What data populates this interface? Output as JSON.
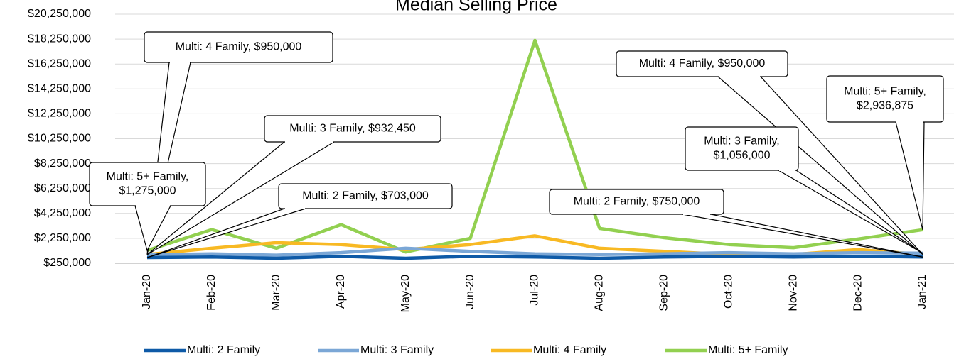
{
  "chart_data": {
    "type": "line",
    "title": "Median Selling Price",
    "categories": [
      "Jan-20",
      "Feb-20",
      "Mar-20",
      "Apr-20",
      "May-20",
      "Jun-20",
      "Jul-20",
      "Aug-20",
      "Sep-20",
      "Oct-20",
      "Nov-20",
      "Dec-20",
      "Jan-21"
    ],
    "series": [
      {
        "name": "Multi: 2 Family",
        "color": "#0e5aa7",
        "values": [
          703000,
          750000,
          650000,
          800000,
          650000,
          800000,
          750000,
          650000,
          750000,
          800000,
          750000,
          800000,
          750000
        ]
      },
      {
        "name": "Multi: 3 Family",
        "color": "#7ba7d6",
        "values": [
          932450,
          1000000,
          900000,
          1100000,
          1450000,
          1200000,
          1000000,
          950000,
          1000000,
          1100000,
          1000000,
          1100000,
          1056000
        ]
      },
      {
        "name": "Multi: 4 Family",
        "color": "#f8b923",
        "values": [
          950000,
          1450000,
          1900000,
          1750000,
          1350000,
          1750000,
          2450000,
          1450000,
          1200000,
          950000,
          950000,
          1350000,
          950000
        ]
      },
      {
        "name": "Multi: 5+ Family",
        "color": "#92d050",
        "values": [
          1275000,
          2950000,
          1450000,
          3350000,
          1150000,
          2250000,
          18150000,
          3050000,
          2300000,
          1750000,
          1500000,
          2200000,
          2936875
        ]
      }
    ],
    "ylim": [
      250000,
      20250000
    ],
    "yticks": [
      {
        "value": 250000,
        "label": "$250,000"
      },
      {
        "value": 2250000,
        "label": "$2,250,000"
      },
      {
        "value": 4250000,
        "label": "$4,250,000"
      },
      {
        "value": 6250000,
        "label": "$6,250,000"
      },
      {
        "value": 8250000,
        "label": "$8,250,000"
      },
      {
        "value": 10250000,
        "label": "$10,250,000"
      },
      {
        "value": 12250000,
        "label": "$12,250,000"
      },
      {
        "value": 14250000,
        "label": "$14,250,000"
      },
      {
        "value": 16250000,
        "label": "$16,250,000"
      },
      {
        "value": 18250000,
        "label": "$18,250,000"
      },
      {
        "value": 20250000,
        "label": "$20,250,000"
      }
    ],
    "grid": true,
    "legend": "bottom",
    "annotations": [
      {
        "lines": [
          "Multi: 4 Family, $950,000"
        ]
      },
      {
        "lines": [
          "Multi: 3 Family, $932,450"
        ]
      },
      {
        "lines": [
          "Multi: 5+ Family,",
          "$1,275,000"
        ]
      },
      {
        "lines": [
          "Multi: 2 Family, $703,000"
        ]
      },
      {
        "lines": [
          "Multi: 4 Family, $950,000"
        ]
      },
      {
        "lines": [
          "Multi: 5+ Family,",
          "$2,936,875"
        ]
      },
      {
        "lines": [
          "Multi: 3 Family,",
          "$1,056,000"
        ]
      },
      {
        "lines": [
          "Multi: 2 Family, $750,000"
        ]
      }
    ]
  }
}
